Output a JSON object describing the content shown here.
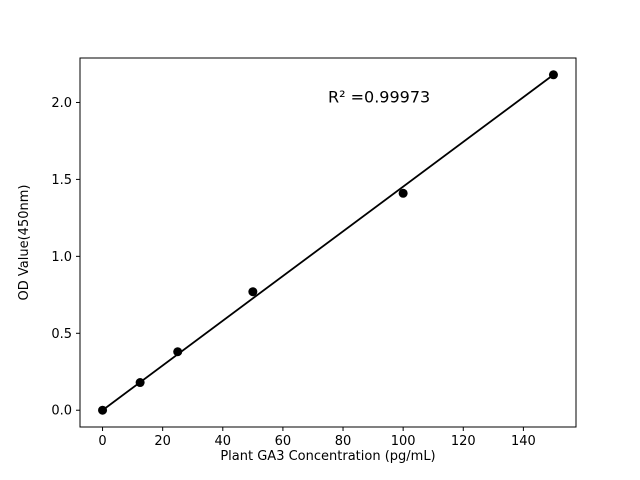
{
  "chart_data": {
    "type": "scatter",
    "title": "",
    "xlabel": "Plant GA3 Concentration (pg/mL)",
    "ylabel": "OD Value(450nm)",
    "annotation": "R² =0.99973",
    "annotation_xy": [
      92,
      2.0
    ],
    "x": [
      0,
      12.5,
      25,
      50,
      100,
      150
    ],
    "y": [
      0.0,
      0.18,
      0.38,
      0.77,
      1.41,
      2.18
    ],
    "fit_line": {
      "x": [
        0,
        150
      ],
      "y": [
        0.0,
        2.18
      ]
    },
    "xlim": [
      -7.5,
      157.5
    ],
    "ylim": [
      -0.109,
      2.289
    ],
    "xticks": [
      0,
      20,
      40,
      60,
      80,
      100,
      120,
      140
    ],
    "yticks": [
      0.0,
      0.5,
      1.0,
      1.5,
      2.0
    ],
    "grid": false,
    "legend": "none",
    "marker_color": "#000000",
    "line_color": "#000000",
    "frame_color": "#000000",
    "background": "#ffffff"
  }
}
